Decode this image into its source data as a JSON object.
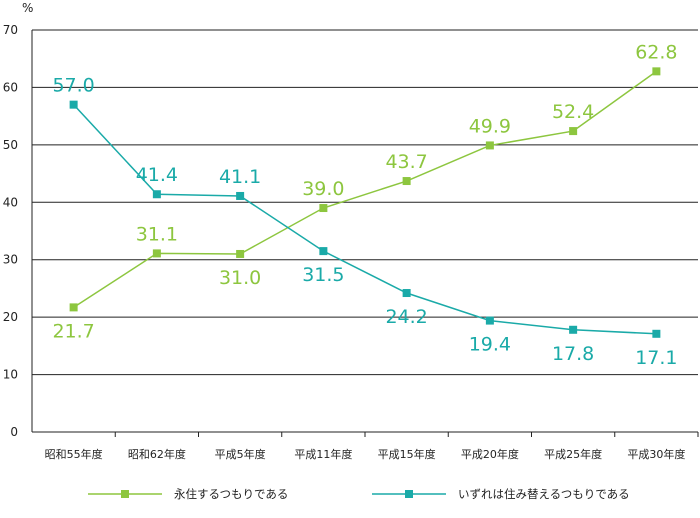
{
  "chart_data": {
    "type": "line",
    "title": "",
    "xlabel": "",
    "ylabel": "%",
    "ylim": [
      0,
      70
    ],
    "yticks": [
      0,
      10,
      20,
      30,
      40,
      50,
      60,
      70
    ],
    "grid": true,
    "legend_position": "bottom",
    "categories": [
      "昭和55年度",
      "昭和62年度",
      "平成5年度",
      "平成11年度",
      "平成15年度",
      "平成20年度",
      "平成25年度",
      "平成30年度"
    ],
    "series": [
      {
        "name": "永住するつもりである",
        "color": "#8dc63f",
        "values": [
          21.7,
          31.1,
          31.0,
          39.0,
          43.7,
          49.9,
          52.4,
          62.8
        ],
        "labels": [
          "21.7",
          "31.1",
          "31.0",
          "39.0",
          "43.7",
          "49.9",
          "52.4",
          "62.8"
        ],
        "label_side": [
          "below",
          "above",
          "below",
          "above",
          "above",
          "above",
          "above",
          "above"
        ]
      },
      {
        "name": "いずれは住み替えるつもりである",
        "color": "#1aaaa8",
        "values": [
          57.0,
          41.4,
          41.1,
          31.5,
          24.2,
          19.4,
          17.8,
          17.1
        ],
        "labels": [
          "57.0",
          "41.4",
          "41.1",
          "31.5",
          "24.2",
          "19.4",
          "17.8",
          "17.1"
        ],
        "label_side": [
          "above",
          "above",
          "above",
          "below",
          "below",
          "below",
          "below",
          "below"
        ]
      }
    ]
  }
}
